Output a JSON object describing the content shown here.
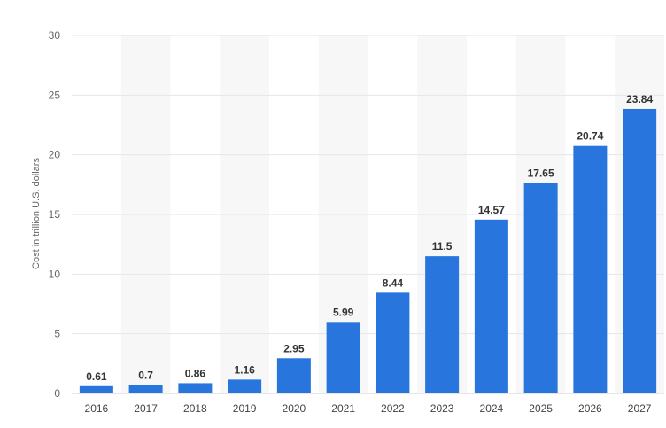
{
  "chart_data": {
    "type": "bar",
    "categories": [
      "2016",
      "2017",
      "2018",
      "2019",
      "2020",
      "2021",
      "2022",
      "2023",
      "2024",
      "2025",
      "2026",
      "2027"
    ],
    "values": [
      0.61,
      0.7,
      0.86,
      1.16,
      2.95,
      5.99,
      8.44,
      11.5,
      14.57,
      17.65,
      20.74,
      23.84
    ],
    "value_labels": [
      "0.61",
      "0.7",
      "0.86",
      "1.16",
      "2.95",
      "5.99",
      "8.44",
      "11.5",
      "14.57",
      "17.65",
      "20.74",
      "23.84"
    ],
    "title": "",
    "xlabel": "",
    "ylabel": "Cost in trillion U.S. dollars",
    "ylim": [
      0,
      30
    ],
    "yticks": [
      "0",
      "5",
      "10",
      "15",
      "20",
      "25",
      "30"
    ],
    "grid": true,
    "legend": "none",
    "colors": {
      "bar": "#2876dd",
      "grid": "#e6e6e6",
      "band": "#f7f7f7",
      "axis": "#cccccc"
    }
  }
}
